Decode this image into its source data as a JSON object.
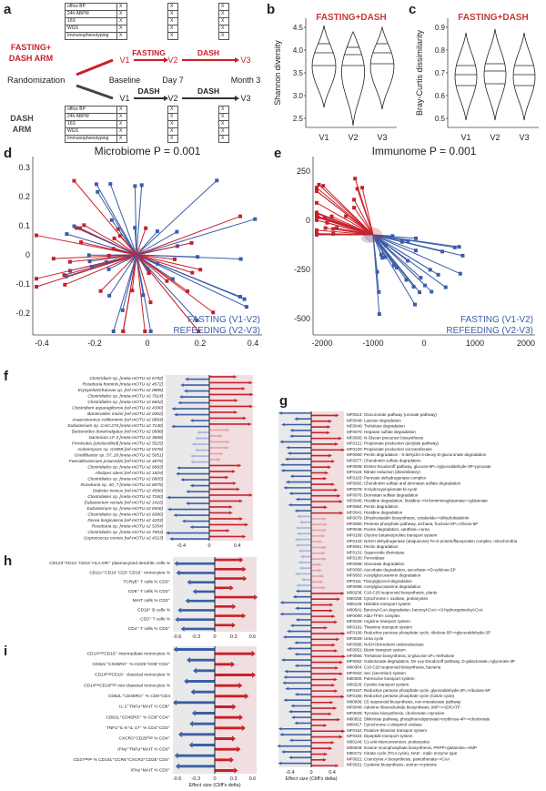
{
  "panel_a": {
    "letter": "a",
    "arm1": "FASTING+\nDASH ARM",
    "arm2": "DASH\nARM",
    "randomization": "Randomization",
    "timepoints": [
      "Baseline",
      "Day 7",
      "Month 3"
    ],
    "visits": [
      "V1",
      "V2",
      "V3"
    ],
    "arm1_phases": [
      "FASTING",
      "DASH"
    ],
    "arm2_phases": [
      "DASH",
      "DASH"
    ],
    "table_rows": [
      "office BP",
      "24h ABPM",
      "16S",
      "WGS",
      "Immunophenotyping"
    ],
    "mark": "X"
  },
  "panel_b": {
    "letter": "b",
    "title": "FASTING+DASH",
    "ylabel": "Shannon diversity",
    "yticks": [
      "4.5",
      "4.0",
      "3.5",
      "3.0",
      "2.5"
    ],
    "xticks": [
      "V1",
      "V2",
      "V3"
    ]
  },
  "panel_c": {
    "letter": "c",
    "title": "FASTING+DASH",
    "ylabel": "Bray-Curtis dissimilarity",
    "yticks": [
      "0.9",
      "0.8",
      "0.7",
      "0.6",
      "0.5"
    ],
    "xticks": [
      "V1",
      "V2",
      "V3"
    ]
  },
  "panel_d": {
    "letter": "d",
    "title": "Microbiome P = 0.001",
    "legend1": "FASTING (V1-V2)",
    "legend2": "REFEEDING (V2-V3)",
    "xticks": [
      "-0.4",
      "-0.2",
      "0",
      "0.2",
      "0.4"
    ],
    "yticks": [
      "0.3",
      "0.2",
      "0.1",
      "0",
      "-0.1",
      "-0.2"
    ]
  },
  "panel_e": {
    "letter": "e",
    "title": "Immunome P = 0.001",
    "legend1": "FASTING (V1-V2)",
    "legend2": "REFEEDING (V2-V3)",
    "xticks": [
      "-2000",
      "-1000",
      "0",
      "1000",
      "2000"
    ],
    "yticks": [
      "250",
      "0",
      "-250",
      "-500"
    ]
  },
  "panel_f": {
    "letter": "f",
    "labels": [
      "Clostridium sp. [meta-mOTU v2 6792]",
      "Roseburia hominis [meta-mOTU v2 4572]",
      "Erysipelotrichaceae sp. [ref-mOTU v2 0885]",
      "Clostridiales sp. [meta-mOTU v2 7014]",
      "Clostridiales sp. [meta-mOTU v2 6602]",
      "Clostridium asparagiforme [ref-mOTU v2 4390]",
      "Bacteroides moinii [ref-mOTU v2 0302]",
      "Anaerotruncus colihominis [ref-mOTU v2 0864]",
      "Eubacterium sp. CAG:274 [meta-mOTU v2 7140]",
      "Bacteroides dorei/vulgatus [ref-mOTU v2 0898]",
      "bacterium LF-3 [meta-mOTU v2 3608]",
      "Firmicutes [unclassified] [meta-mOTU v2 5525]",
      "Actinomyces sp. ICM59 [ref-mOTU v2 0376]",
      "Oscillibacter sp. 57_20 [meta-mOTU v2 5051]",
      "Faecalibacterium prausnitzii [ref-mOTU v2 4875]",
      "Clostridiales sp. [meta-mOTU v2 6883]",
      "Alistipes obesi [ref-mOTU v2 1825]",
      "Clostridiales sp. [meta-mOTU v2 6805]",
      "Roseburia sp. 40_7 [meta-mOTU v2 6875]",
      "Dialister invisus [ref-mOTU v2 4596]",
      "Clostridiales sp. [meta-mOTU v2 7160]",
      "Eubacterium rectale [ref-mOTU v2 1416]",
      "Eubacterium sp. [meta-mOTU v2 6506]",
      "Clostridiales sp. [meta-mOTU v2 6086]",
      "Dorea longicatena [ref-mOTU v2 4203]",
      "Roseburia sp. [meta-mOTU v2 5354]",
      "Clostridiales sp. [meta-mOTU v2 7003]",
      "Coprococcus comes [ref-mOTU v2 4313]"
    ],
    "xticks": [
      "-0.4",
      "0",
      "0.4"
    ]
  },
  "panel_g": {
    "letter": "g",
    "labels": [
      "MF0014: Glucuronate pathway (uronate pathway)",
      "MF0048: Lactose degradation",
      "MF0040: Trehalose degradation",
      "MF0070: Heparan sulfate degradation",
      "MF0005: N-Glycan precursor biosynthesis",
      "MF0121: Propionate production (acrylate pathway)",
      "MF0120: Propionate production via transferase",
      "MF0060: Pectin degradation - 5-dehydro-4-deoxy-D-glucuronate degradation",
      "MF0077: Chondroitin sulfate degradation",
      "MF0008: Entner-Doudoroff pathway, glucose-6P=>glyceraldehyde-3P+pyruvate",
      "MF0116: Nitrate reduction (dissimilatory)",
      "MF0103: Pyruvate dehydrogenase complex",
      "MF0092: Chondroitin sulfate and dermatan sulfate degradation",
      "MF0078: 3-Hydroxypropionate bi-cycle",
      "MF0076: Dermatan sulfate degradation",
      "MF0045: Histidine degradation, histidine=>N-formiminoglutamate=>glutamate",
      "MF0064: Pectin degradation",
      "MF0041: Histidine degradation",
      "MF0079: Dihydrostatulin biosynthesis, octaketide=>dihydrokatulinin",
      "MF0050: Pentose phosphate pathway, archaea, fructose-6P=>ribose-5P",
      "MF0046: Purine degradation, xanthine=>urea",
      "MF0109: Glycine betaine/proline transport system",
      "MF0143: NADH dehydrogenase (ubiquinone) Fe-S protein/flavoprotein complex, mitochondria",
      "MF0061: Pectin degradation",
      "MF0131: Superoxide dismutase",
      "MF0130: Peroxidase",
      "MF0088: Glucarate degradation",
      "MF0050: Ascorbate degradation, ascorbate=>D-xylulose-5P",
      "MF0003: Acetylglucosamine degradation",
      "MF0111: Triacylglycerol degradation",
      "MF0098: Acetylglucosamine degradation",
      "M00236: C10-C20 isoprenoid biosynthesis, plants",
      "M00155: Cytochrome c oxidase, prokaryotes",
      "M00126: Histidine transport system",
      "M00541: Benzoyl-CoA degradation, benzoyl-CoA=>3-hydroxypimeloyl-CoA",
      "MF0090: Aldo-TFIIH complex",
      "MF0029: Arginine transport system",
      "MF0191: Thiamine transport system",
      "MF0108: Reductive pentose phosphate cycle, ribulose-5P=>glyceraldehyde-3P",
      "MF0029: Urea cycle",
      "MF0095: NADH:ferredoxin oxidoreductase",
      "MF0051: Biotin transport system",
      "MF0065: Trehalose biosynthesis, D-glucose-1P=>trehalose",
      "MF0052: Galactonate degradation, De Ley-Doudoroff pathway, D-galactonate=>glycerate-3P",
      "M00364: C10-C20 isoprenoid biosynthesis, bacteria",
      "MF0032: Sec (secretion) system",
      "M00300: Putrescine transport system",
      "M00226: Cystine transport system",
      "MF0167: Reductive pentose phosphate cycle, glyceraldehyde-3P=>ribulose-5P",
      "MF0165: Reductive pentose phosphate cycle (Calvin cycle)",
      "M00096: C5 isoprenoid biosynthesis, non-mevalonate pathway",
      "MF0049: Adenine ribonucleotide biosynthesis, IMP=>ADP,ATP",
      "MF0025: Tyrosine biosynthesis, chorismate=>tyrosine",
      "M00052: Shikimate pathway, phosphoenolpyruvate+erythrose-4P=>chorismate",
      "M00417: Cytochrome o ubiquinol oxidase",
      "MF0152: Putative thiamine transport system",
      "MF0324: Dipeptide transport system",
      "M00140: C1-unit interconversion, prokaryotes",
      "M00048: Inosine monophosphate biosynthesis, PRPP+glutamine=>IMP",
      "M00171: Citrate cycle (TCA cycle), NAD - malic enzyme type",
      "MF0021: Coenzyme A biosynthesis, pantothenate=>CoA",
      "MF0021: Cysteine biosynthesis, serine=>cysteine"
    ],
    "xticks": [
      "-0.4",
      "0",
      "0.4"
    ],
    "xlabel": "Effect size (Cliff's delta)"
  },
  "panel_h": {
    "letter": "h",
    "labels": [
      "CD123⁺CD14⁻CD16⁻HLA-DR⁺ plasmacytoid dendritic cells %",
      "CD11c⁺CD14⁻CD3⁻CD19⁻ monocytes %",
      "TCRγδ⁺ T cells % CD3⁺",
      "CD8⁺ T cells % CD3⁺",
      "MAIT cells % CD3⁺",
      "CD19⁺ B cells %",
      "CD3⁺ T cells %",
      "CD4⁺ T cells % CD3⁺"
    ],
    "xticks": [
      "-0.6",
      "-0.3",
      "0",
      "0.3",
      "0.6"
    ]
  },
  "panel_i": {
    "letter": "i",
    "labels": [
      "CD14ᵐᵒᵈCD16⁺ intermediate monocytes %",
      "CD62L⁺CD45RO⁻ % CD25⁺CD8⁺CD4⁺",
      "CD14ʰⁱᵍʰCD16⁻ classical monocytes %",
      "CD14ˡᵒʷCD16ʰⁱᵍʰ non-classical monocytes %",
      "CD62L⁺CD45RO⁻ % CD8⁺CD4",
      "IL-2⁺TNFα⁺MAIT % CD8⁺",
      "CD62L⁺CD45RO⁺ % CD8⁺CD4⁺",
      "TNFα⁺IL-5⁺IL-17⁺ % CD4⁺CD3⁺",
      "CXCR3⁺CD25ʰⁱᵍʰ % CD4⁺",
      "IFNγ⁺TNFα⁺MAIT % CD3⁺",
      "CD27ᵗᵃʳᵍᵉᵗ % CD161⁺CCR6⁺CXCR3⁺CD25⁺CD4⁺",
      "IFNγ⁺MAIT % CD3⁺"
    ],
    "xticks": [
      "-0.6",
      "-0.3",
      "0",
      "0.3",
      "0.6"
    ],
    "xlabel": "Effect size (Cliff's delta)"
  },
  "colors": {
    "red": "#c8202a",
    "blue": "#3a5ea8",
    "pink": "#e7a0a7",
    "lightblue": "#a5b3dc",
    "title_red": "#c23a3a"
  }
}
